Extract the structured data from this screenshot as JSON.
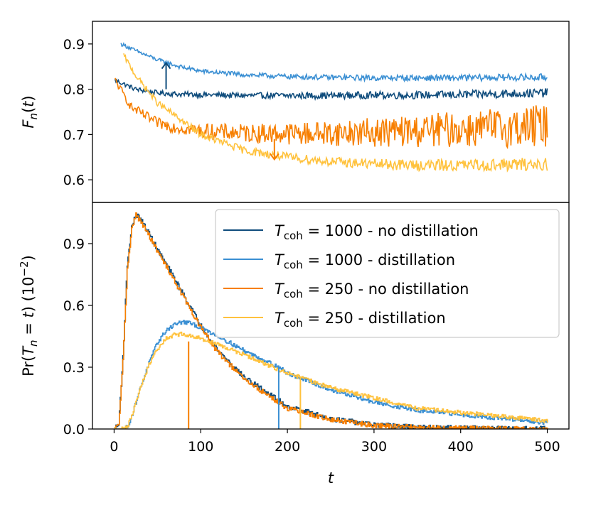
{
  "chart_data": [
    {
      "type": "line",
      "panel": "top",
      "ylabel_base": "F",
      "ylabel_sub": "n",
      "ylabel_tail": "(t)",
      "xlim": [
        -25,
        525
      ],
      "ylim": [
        0.55,
        0.95
      ],
      "yticks": [
        0.6,
        0.7,
        0.8,
        0.9
      ],
      "ytick_labels": [
        "0.6",
        "0.7",
        "0.8",
        "0.9"
      ],
      "grid": false,
      "series": [
        {
          "color": "#0f4c7c",
          "x": [
            1,
            25,
            50,
            75,
            100,
            150,
            200,
            250,
            300,
            350,
            400,
            450,
            500
          ],
          "y": [
            0.82,
            0.8,
            0.792,
            0.789,
            0.788,
            0.786,
            0.786,
            0.786,
            0.787,
            0.787,
            0.788,
            0.79,
            0.792
          ],
          "noise": 0.005
        },
        {
          "color": "#3a8fd3",
          "x": [
            8,
            25,
            50,
            75,
            100,
            150,
            200,
            250,
            300,
            350,
            400,
            450,
            500
          ],
          "y": [
            0.9,
            0.885,
            0.865,
            0.85,
            0.84,
            0.832,
            0.828,
            0.826,
            0.825,
            0.825,
            0.825,
            0.826,
            0.826
          ],
          "noise": 0.004
        },
        {
          "color": "#f77f00",
          "x": [
            1,
            20,
            50,
            75,
            100,
            150,
            200,
            250,
            300,
            350,
            400,
            450,
            500
          ],
          "y": [
            0.82,
            0.76,
            0.725,
            0.715,
            0.708,
            0.703,
            0.702,
            0.703,
            0.705,
            0.708,
            0.712,
            0.715,
            0.72
          ],
          "noise": 0.008
        },
        {
          "color": "#ffc23d",
          "x": [
            11,
            25,
            50,
            100,
            150,
            200,
            250,
            300,
            350,
            400,
            450,
            500
          ],
          "y": [
            0.875,
            0.83,
            0.77,
            0.7,
            0.665,
            0.65,
            0.64,
            0.635,
            0.632,
            0.632,
            0.633,
            0.635
          ],
          "noise": 0.006
        }
      ],
      "arrows": [
        {
          "color": "#0f4c7c",
          "x": 60,
          "y_from": 0.8,
          "y_to": 0.858
        },
        {
          "color": "#f77f00",
          "x": 185,
          "y_from": 0.69,
          "y_to": 0.645
        }
      ]
    },
    {
      "type": "line",
      "panel": "bottom",
      "xlabel": "t",
      "ylabel_pre": "Pr(",
      "ylabel_base": "T",
      "ylabel_sub": "n",
      "ylabel_post": " = t) (10",
      "ylabel_sup": "−2",
      "ylabel_end": ")",
      "xlim": [
        -25,
        525
      ],
      "ylim": [
        0,
        1.1
      ],
      "xticks": [
        0,
        100,
        200,
        300,
        400,
        500
      ],
      "xtick_labels": [
        "0",
        "100",
        "200",
        "300",
        "400",
        "500"
      ],
      "yticks": [
        0,
        0.3,
        0.6,
        0.9
      ],
      "ytick_labels": [
        "0.0",
        "0.3",
        "0.6",
        "0.9"
      ],
      "grid": false,
      "legend_position": "top-right",
      "series": [
        {
          "name": "T_coh = 1000 - no distillation",
          "color": "#0f4c7c",
          "x": [
            0,
            5,
            10,
            15,
            20,
            25,
            30,
            40,
            50,
            60,
            80,
            100,
            120,
            150,
            200,
            250,
            300,
            350,
            400,
            450,
            500
          ],
          "y": [
            0,
            0.02,
            0.35,
            0.8,
            0.98,
            1.04,
            1.02,
            0.95,
            0.87,
            0.8,
            0.65,
            0.5,
            0.38,
            0.25,
            0.11,
            0.05,
            0.02,
            0.008,
            0.004,
            0.002,
            0.001
          ],
          "noise": 0.012
        },
        {
          "name": "T_coh = 1000 - distillation",
          "color": "#3a8fd3",
          "x": [
            0,
            10,
            15,
            20,
            30,
            40,
            50,
            60,
            70,
            80,
            90,
            100,
            120,
            150,
            190,
            200,
            250,
            300,
            350,
            400,
            450,
            500
          ],
          "y": [
            0,
            0.0,
            0.01,
            0.06,
            0.2,
            0.32,
            0.42,
            0.48,
            0.51,
            0.52,
            0.51,
            0.49,
            0.45,
            0.38,
            0.3,
            0.27,
            0.19,
            0.13,
            0.09,
            0.07,
            0.05,
            0.03
          ],
          "noise": 0.01
        },
        {
          "name": "T_coh = 250 - no distillation",
          "color": "#f77f00",
          "x": [
            0,
            5,
            10,
            15,
            20,
            25,
            30,
            40,
            50,
            60,
            80,
            100,
            120,
            150,
            200,
            250,
            300,
            350,
            400,
            450,
            500
          ],
          "y": [
            0,
            0.02,
            0.33,
            0.78,
            0.97,
            1.04,
            1.01,
            0.94,
            0.86,
            0.79,
            0.64,
            0.49,
            0.37,
            0.24,
            0.1,
            0.045,
            0.018,
            0.007,
            0.003,
            0.001,
            0.0
          ],
          "noise": 0.012
        },
        {
          "name": "T_coh = 250 - distillation",
          "color": "#ffc23d",
          "x": [
            0,
            10,
            15,
            20,
            30,
            40,
            50,
            60,
            70,
            80,
            90,
            100,
            120,
            150,
            200,
            215,
            250,
            300,
            350,
            400,
            450,
            500
          ],
          "y": [
            0,
            0.0,
            0.01,
            0.06,
            0.2,
            0.31,
            0.39,
            0.44,
            0.46,
            0.46,
            0.45,
            0.44,
            0.41,
            0.36,
            0.27,
            0.25,
            0.2,
            0.15,
            0.1,
            0.08,
            0.06,
            0.04
          ],
          "noise": 0.01
        }
      ],
      "legend": [
        {
          "sym": "T",
          "sub": "coh",
          "text": " = 1000 - no distillation",
          "color": "#0f4c7c"
        },
        {
          "sym": "T",
          "sub": "coh",
          "text": " = 1000 - distillation",
          "color": "#3a8fd3"
        },
        {
          "sym": "T",
          "sub": "coh",
          "text": " = 250 - no distillation",
          "color": "#f77f00"
        },
        {
          "sym": "T",
          "sub": "coh",
          "text": " = 250 - distillation",
          "color": "#ffc23d"
        }
      ],
      "markers": [
        {
          "x": 86,
          "y": 0.425,
          "color": "#f77f00"
        },
        {
          "x": 190,
          "y": 0.3,
          "color": "#3a8fd3"
        },
        {
          "x": 215,
          "y": 0.25,
          "color": "#ffc23d"
        }
      ]
    }
  ]
}
